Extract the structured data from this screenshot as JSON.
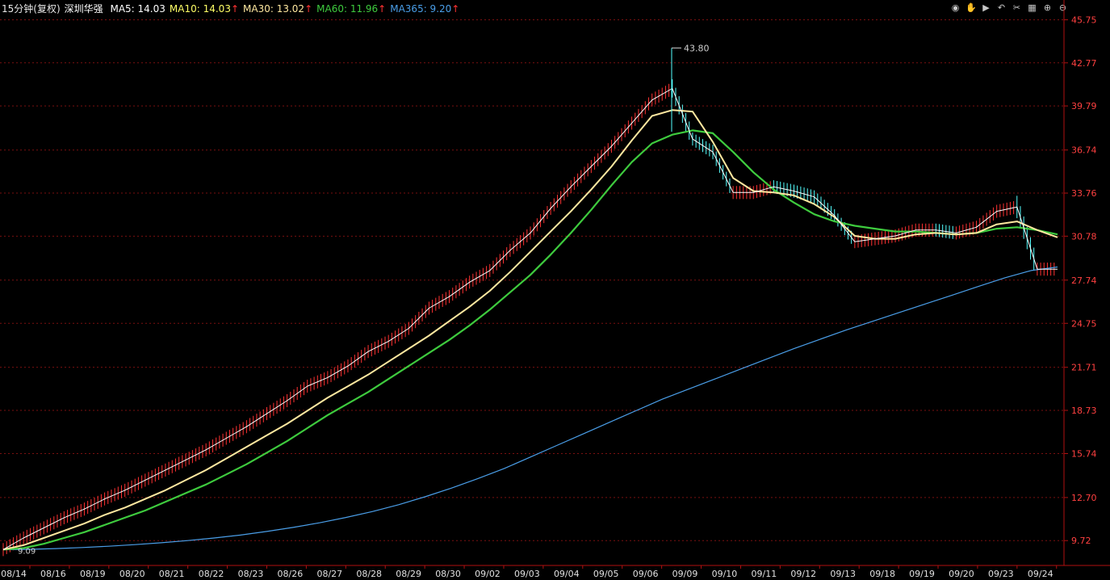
{
  "header": {
    "period": "15分钟(复权)",
    "stock": "深圳华强",
    "ma": [
      {
        "label": "MA5: 14.03",
        "color": "#ffffff",
        "arrow": ""
      },
      {
        "label": "MA10: 14.03",
        "color": "#ffff66",
        "arrow": "↑"
      },
      {
        "label": "MA30: 13.02",
        "color": "#ffe8a0",
        "arrow": "↑"
      },
      {
        "label": "MA60: 11.96",
        "color": "#3ecb3e",
        "arrow": "↑"
      },
      {
        "label": "MA365: 9.20",
        "color": "#4a9ee8",
        "arrow": "↑"
      }
    ]
  },
  "toolbar_icons": [
    "eye-icon",
    "hand-icon",
    "play-icon",
    "undo-icon",
    "scissors-icon",
    "grid-icon",
    "zoom-in-icon",
    "zoom-out-icon"
  ],
  "colors": {
    "up": "#ff3232",
    "down": "#54ffff",
    "grid": "#7a1010",
    "axis": "#b01010",
    "label": "#ff4040",
    "ma5": "#ffffff",
    "ma30": "#ffe8a0",
    "ma60": "#3ecb3e",
    "ma365": "#4a9ee8"
  },
  "chart_data": {
    "type": "line",
    "ylim": [
      8.0,
      46.0
    ],
    "yticks": [
      "45.75",
      "42.77",
      "39.79",
      "36.74",
      "33.76",
      "30.78",
      "27.74",
      "24.75",
      "21.71",
      "18.73",
      "15.74",
      "12.70",
      "9.72"
    ],
    "xticks": [
      "08/14",
      "08/16",
      "08/19",
      "08/20",
      "08/21",
      "08/22",
      "08/23",
      "08/26",
      "08/27",
      "08/28",
      "08/29",
      "08/30",
      "09/02",
      "09/03",
      "09/04",
      "09/05",
      "09/06",
      "09/09",
      "09/10",
      "09/11",
      "09/12",
      "09/13",
      "09/18",
      "09/19",
      "09/20",
      "09/23",
      "09/24"
    ],
    "annotations": [
      {
        "label": "43.80",
        "value": 43.8,
        "date": "09/06"
      },
      {
        "label": "9.09",
        "value": 9.09,
        "date": "08/14"
      }
    ],
    "series": [
      {
        "key": "ma5",
        "values": [
          9.1,
          9.9,
          10.6,
          11.3,
          11.9,
          12.6,
          13.2,
          13.9,
          14.6,
          15.3,
          16.0,
          16.8,
          17.6,
          18.5,
          19.4,
          20.4,
          21.0,
          21.8,
          22.8,
          23.5,
          24.4,
          25.8,
          26.6,
          27.6,
          28.4,
          29.8,
          31.0,
          32.7,
          34.2,
          35.6,
          37.0,
          38.6,
          40.2,
          41.0,
          37.5,
          36.6,
          33.8,
          33.8,
          34.2,
          33.9,
          33.5,
          32.2,
          30.4,
          30.6,
          30.8,
          31.2,
          31.2,
          31.0,
          31.4,
          32.5,
          32.8,
          28.5,
          28.5
        ]
      },
      {
        "key": "ma30",
        "values": [
          9.1,
          9.4,
          9.9,
          10.4,
          10.9,
          11.5,
          12.0,
          12.6,
          13.2,
          13.9,
          14.6,
          15.4,
          16.2,
          17.0,
          17.8,
          18.7,
          19.6,
          20.4,
          21.2,
          22.1,
          23.0,
          23.9,
          24.9,
          25.9,
          27.0,
          28.3,
          29.7,
          31.1,
          32.5,
          34.0,
          35.6,
          37.4,
          39.1,
          39.5,
          39.4,
          37.3,
          34.8,
          33.9,
          33.8,
          33.6,
          33.0,
          32.1,
          30.8,
          30.6,
          30.6,
          30.9,
          31.0,
          30.9,
          31.0,
          31.6,
          31.8,
          31.2,
          30.7
        ]
      },
      {
        "key": "ma60",
        "values": [
          9.1,
          9.2,
          9.5,
          9.9,
          10.3,
          10.8,
          11.3,
          11.8,
          12.4,
          13.0,
          13.6,
          14.3,
          15.0,
          15.8,
          16.6,
          17.5,
          18.4,
          19.2,
          20.0,
          20.9,
          21.8,
          22.7,
          23.6,
          24.6,
          25.7,
          26.9,
          28.1,
          29.5,
          31.0,
          32.6,
          34.3,
          35.9,
          37.2,
          37.8,
          38.1,
          37.9,
          36.6,
          35.2,
          34.0,
          33.1,
          32.3,
          31.8,
          31.5,
          31.3,
          31.1,
          31.1,
          31.0,
          30.9,
          31.0,
          31.3,
          31.4,
          31.2,
          30.9
        ]
      },
      {
        "key": "ma365",
        "values": [
          9.09,
          9.12,
          9.17,
          9.24,
          9.33,
          9.44,
          9.57,
          9.72,
          9.9,
          10.1,
          10.35,
          10.63,
          10.95,
          11.32,
          11.73,
          12.2,
          12.75,
          13.35,
          14.0,
          14.7,
          15.5,
          16.3,
          17.1,
          17.9,
          18.7,
          19.5,
          20.2,
          20.9,
          21.6,
          22.3,
          23.0,
          23.65,
          24.3,
          24.9,
          25.5,
          26.1,
          26.7,
          27.3,
          27.9,
          28.4,
          28.65
        ]
      }
    ]
  }
}
